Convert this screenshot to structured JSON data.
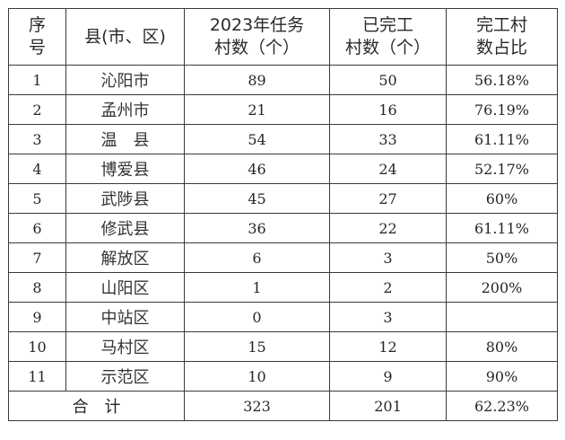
{
  "headers": {
    "seq": [
      "序",
      "号"
    ],
    "county": "县(市、区)",
    "task": [
      "2023年任务",
      "村数（个）"
    ],
    "done": [
      "已完工",
      "村数（个）"
    ],
    "ratio": [
      "完工村",
      "数占比"
    ]
  },
  "rows": [
    {
      "seq": "1",
      "county": "沁阳市",
      "task": "89",
      "done": "50",
      "ratio": "56.18%"
    },
    {
      "seq": "2",
      "county": "孟州市",
      "task": "21",
      "done": "16",
      "ratio": "76.19%"
    },
    {
      "seq": "3",
      "county": "温　县",
      "task": "54",
      "done": "33",
      "ratio": "61.11%"
    },
    {
      "seq": "4",
      "county": "博爱县",
      "task": "46",
      "done": "24",
      "ratio": "52.17%"
    },
    {
      "seq": "5",
      "county": "武陟县",
      "task": "45",
      "done": "27",
      "ratio": "60%"
    },
    {
      "seq": "6",
      "county": "修武县",
      "task": "36",
      "done": "22",
      "ratio": "61.11%"
    },
    {
      "seq": "7",
      "county": "解放区",
      "task": "6",
      "done": "3",
      "ratio": "50%"
    },
    {
      "seq": "8",
      "county": "山阳区",
      "task": "1",
      "done": "2",
      "ratio": "200%"
    },
    {
      "seq": "9",
      "county": "中站区",
      "task": "0",
      "done": "3",
      "ratio": ""
    },
    {
      "seq": "10",
      "county": "马村区",
      "task": "15",
      "done": "12",
      "ratio": "80%"
    },
    {
      "seq": "11",
      "county": "示范区",
      "task": "10",
      "done": "9",
      "ratio": "90%"
    }
  ],
  "total": {
    "label": "合　计",
    "task": "323",
    "done": "201",
    "ratio": "62.23%"
  }
}
